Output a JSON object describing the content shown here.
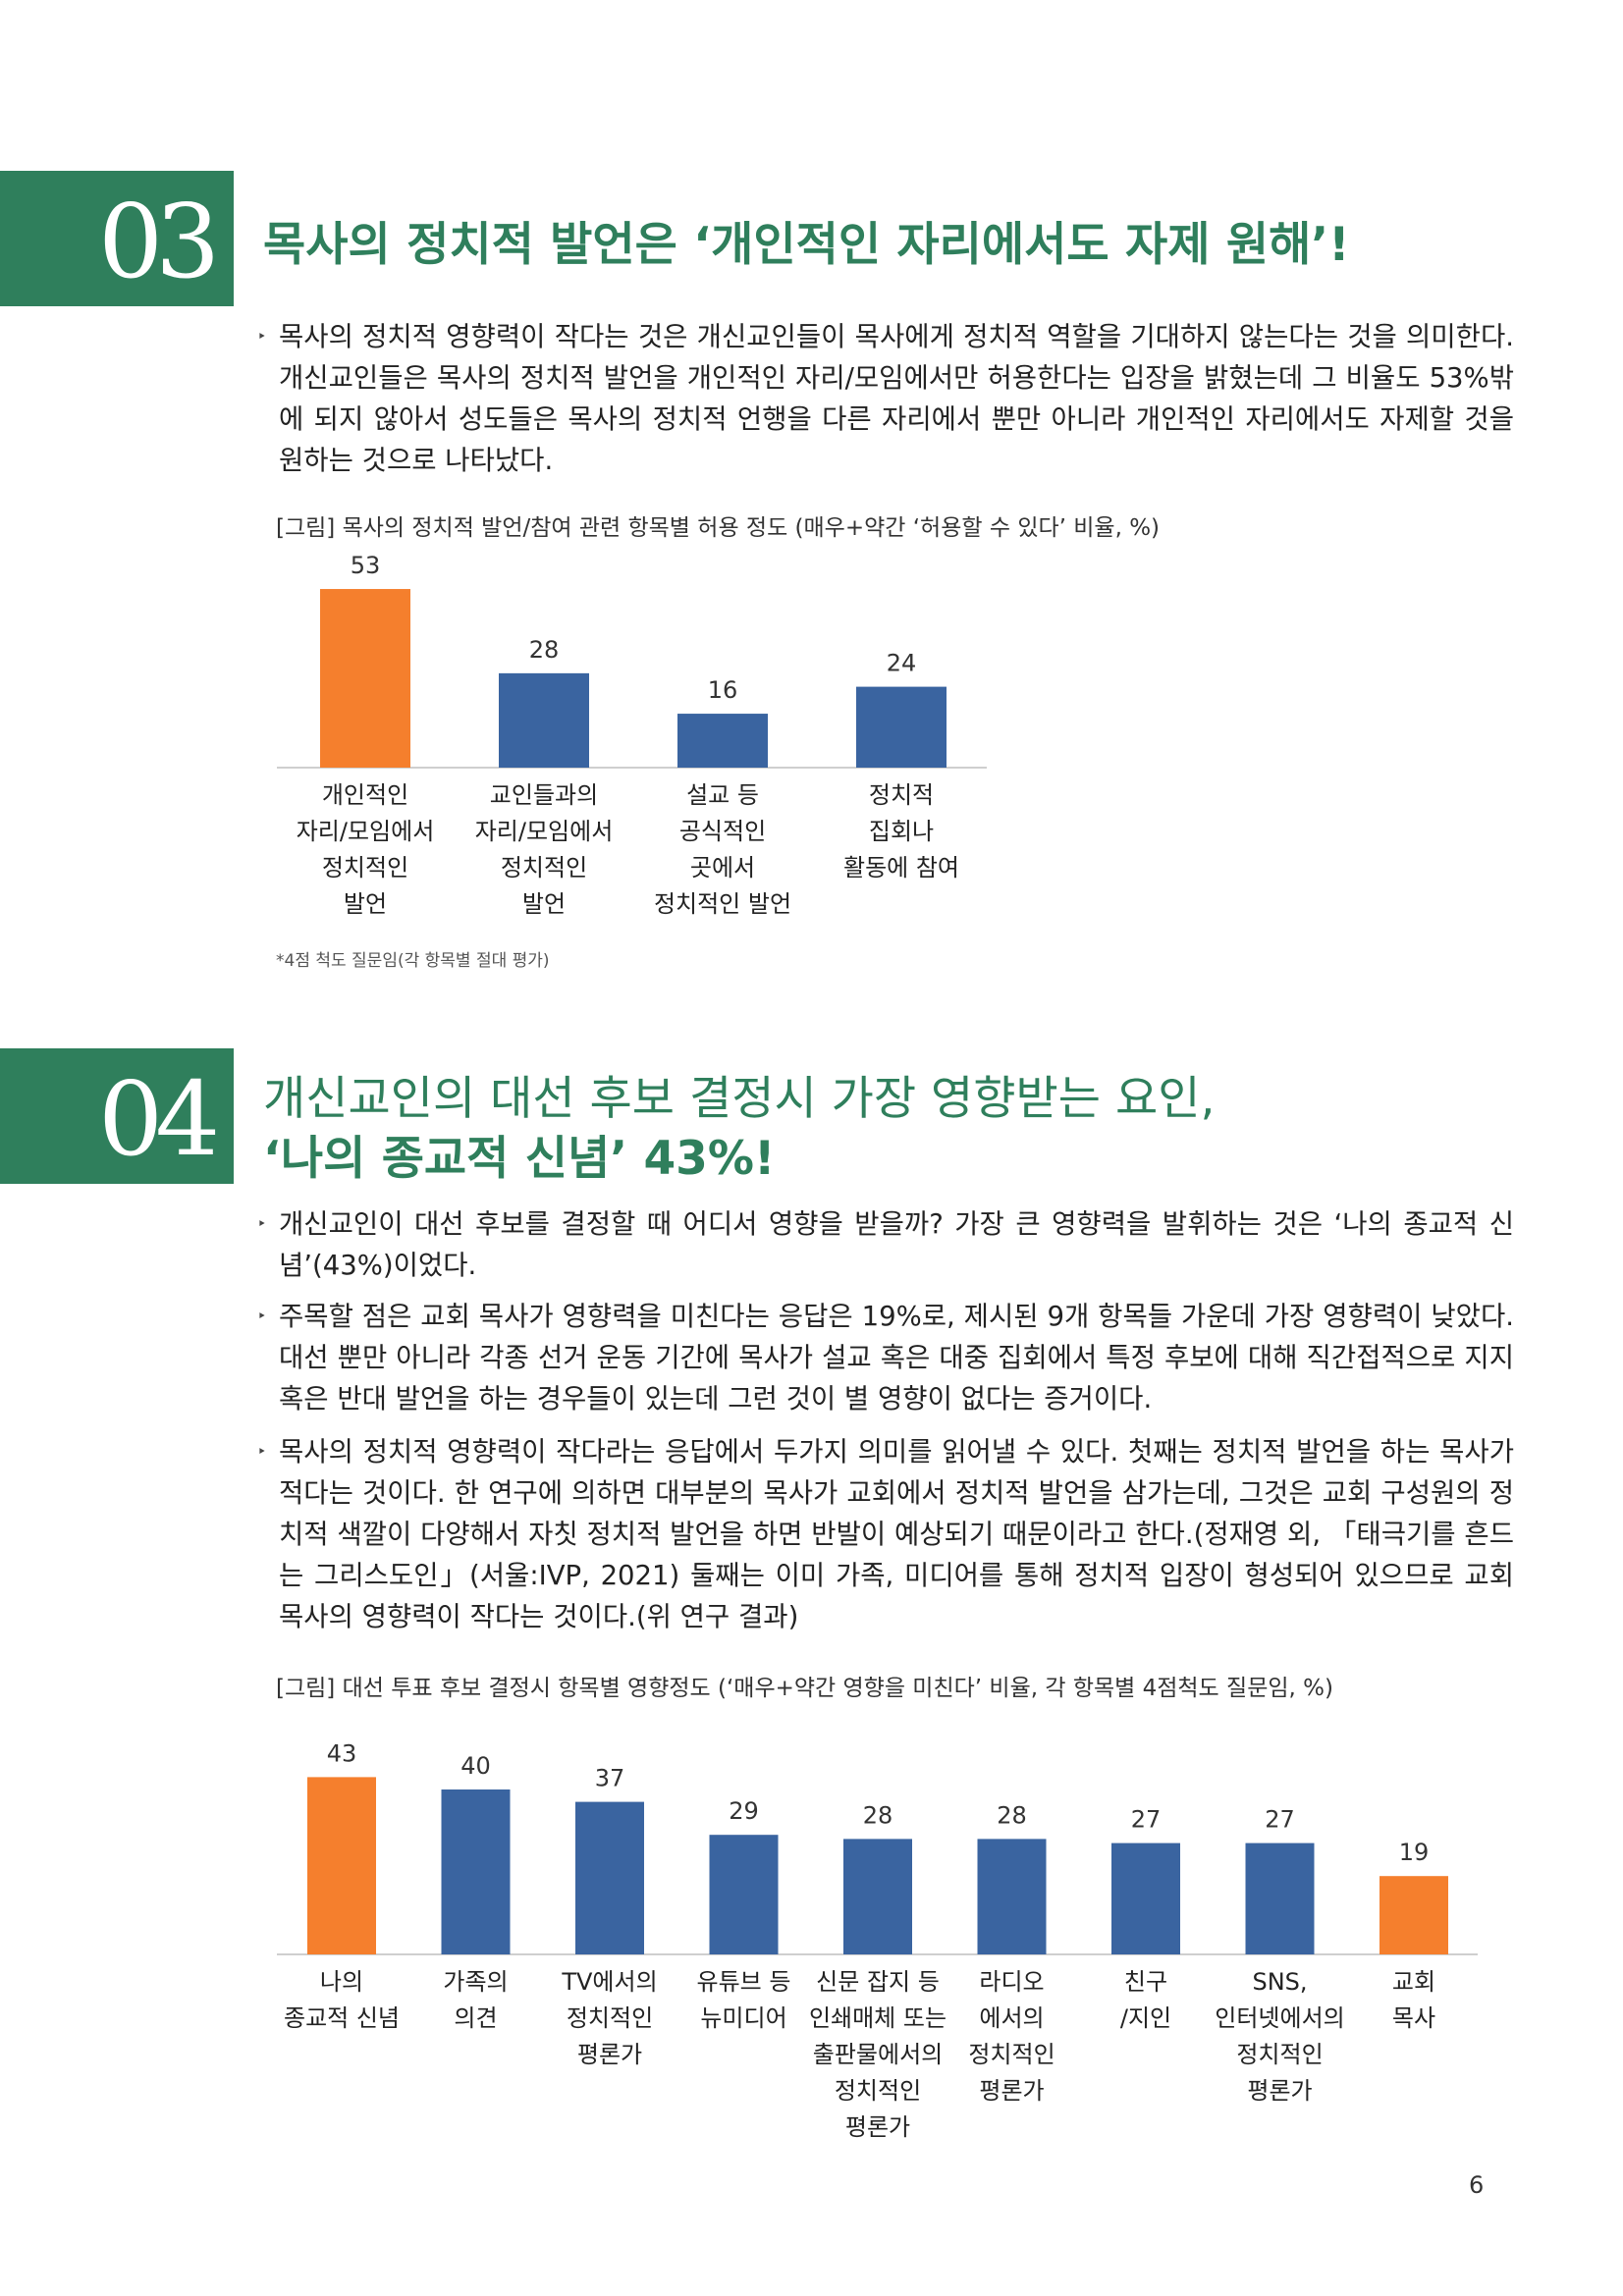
{
  "colors": {
    "accent": "#2f7f5c",
    "highlight_bar": "#f57f2d",
    "normal_bar": "#3a64a0"
  },
  "section3": {
    "number": "03",
    "title": "목사의 정치적 발언은 ‘개인적인 자리에서도 자제 원해’!",
    "paragraphs": [
      "목사의 정치적 영향력이 작다는 것은 개신교인들이 목사에게 정치적 역할을 기대하지 않는다는 것을 의미한다. 개신교인들은 목사의 정치적 발언을 개인적인 자리/모임에서만 허용한다는 입장을 밝혔는데 그 비율도 53%밖에 되지 않아서 성도들은 목사의 정치적 언행을 다른 자리에서 뿐만 아니라 개인적인 자리에서도 자제할 것을 원하는 것으로 나타났다."
    ],
    "caption": "[그림] 목사의 정치적 발언/참여 관련 항목별 허용 정도 (매우+약간 ‘허용할 수 있다’ 비율, %)",
    "footnote": "*4점 척도 질문임(각 항목별 절대 평가)"
  },
  "section4": {
    "number": "04",
    "title_line1": "개신교인의 대선 후보 결정시 가장 영향받는 요인,",
    "title_line2": "‘나의 종교적 신념’ 43%!",
    "paragraphs": [
      "개신교인이 대선 후보를 결정할 때 어디서 영향을 받을까? 가장 큰 영향력을 발휘하는 것은 ‘나의 종교적 신념’(43%)이었다.",
      "주목할 점은 교회 목사가 영향력을 미친다는 응답은 19%로, 제시된 9개 항목들 가운데 가장 영향력이 낮았다. 대선 뿐만 아니라 각종 선거 운동 기간에 목사가 설교 혹은 대중 집회에서 특정 후보에 대해 직간접적으로 지지 혹은 반대 발언을 하는 경우들이 있는데 그런 것이 별 영향이 없다는 증거이다.",
      "목사의 정치적 영향력이 작다라는 응답에서 두가지 의미를 읽어낼 수 있다. 첫째는 정치적 발언을 하는 목사가 적다는 것이다. 한 연구에 의하면 대부분의 목사가 교회에서 정치적 발언을 삼가는데, 그것은 교회 구성원의 정치적 색깔이 다양해서 자칫 정치적 발언을 하면 반발이 예상되기 때문이라고 한다.(정재영 외, 「태극기를 흔드는 그리스도인」(서울:IVP, 2021) 둘째는 이미 가족, 미디어를 통해 정치적 입장이 형성되어 있으므로 교회 목사의 영향력이 작다는 것이다.(위 연구 결과)"
    ],
    "caption": "[그림] 대선 투표 후보 결정시 항목별 영향정도 (‘매우+약간 영향을 미친다’ 비율, 각 항목별 4점척도 질문임, %)"
  },
  "bullet_glyph": "‣",
  "page_number": "6",
  "chart_data": [
    {
      "type": "bar",
      "categories": [
        "개인적인\n자리/모임에서\n정치적인\n발언",
        "교인들과의\n자리/모임에서\n정치적인\n발언",
        "설교 등\n공식적인\n곳에서\n정치적인 발언",
        "정치적\n집회나\n활동에 참여"
      ],
      "values": [
        53,
        28,
        16,
        24
      ],
      "highlight": [
        0
      ],
      "ylim": [
        0,
        60
      ]
    },
    {
      "type": "bar",
      "categories": [
        "나의\n종교적 신념",
        "가족의\n의견",
        "TV에서의\n정치적인\n평론가",
        "유튜브 등\n뉴미디어",
        "신문 잡지 등\n인쇄매체 또는\n출판물에서의\n정치적인\n평론가",
        "라디오\n에서의\n정치적인\n평론가",
        "친구\n/지인",
        "SNS,\n인터넷에서의\n정치적인\n평론가",
        "교회\n목사"
      ],
      "values": [
        43,
        40,
        37,
        29,
        28,
        28,
        27,
        27,
        19
      ],
      "highlight": [
        0,
        8
      ],
      "ylim": [
        0,
        50
      ]
    }
  ]
}
